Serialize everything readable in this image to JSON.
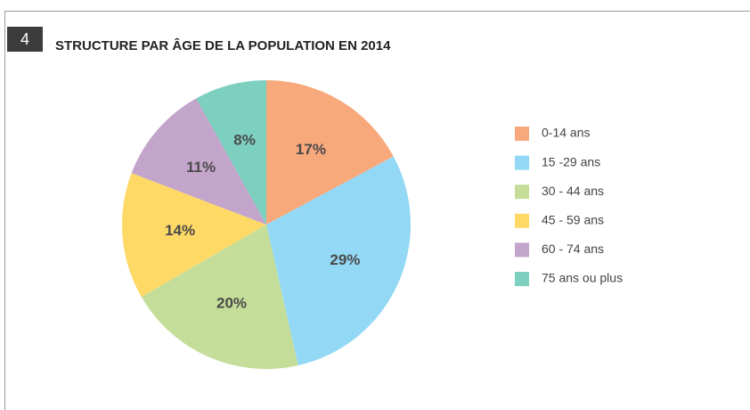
{
  "badge": "4",
  "chart_data": {
    "type": "pie",
    "title": "STRUCTURE PAR ÂGE DE LA POPULATION EN 2014",
    "categories": [
      "0-14 ans",
      "15 -29 ans",
      "30 - 44 ans",
      "45 - 59 ans",
      "60 - 74 ans",
      "75 ans ou plus"
    ],
    "values": [
      17,
      29,
      20,
      14,
      11,
      8
    ],
    "value_labels": [
      "17%",
      "29%",
      "20%",
      "14%",
      "11%",
      "8%"
    ],
    "colors": [
      "#f8a97c",
      "#93d8f4",
      "#c4de9a",
      "#fed966",
      "#c3a5cb",
      "#7dcfc0"
    ],
    "legend": "right"
  }
}
